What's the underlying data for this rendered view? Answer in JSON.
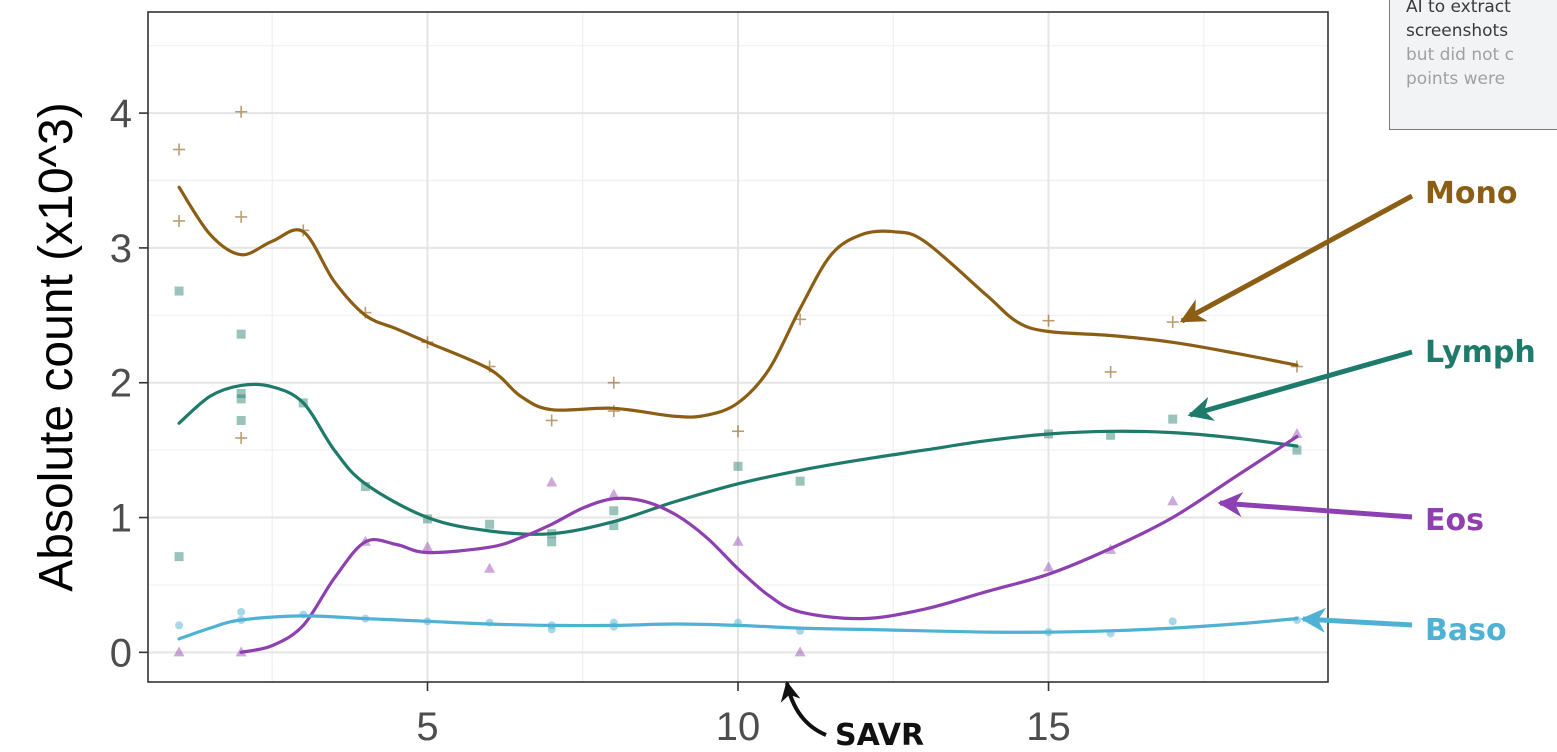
{
  "chart_data": {
    "type": "scatter",
    "ylabel": "Absolute count (x10^3)",
    "xlabel": "",
    "xlim": [
      0.5,
      19.5
    ],
    "ylim": [
      -0.22,
      4.75
    ],
    "x_ticks": [
      "5",
      "10",
      "15"
    ],
    "y_ticks": [
      "0",
      "1",
      "2",
      "3",
      "4"
    ],
    "grid": true,
    "series": [
      {
        "name": "Mono",
        "color": "#8b5e14",
        "marker": "plus",
        "points": [
          [
            1,
            3.73
          ],
          [
            1,
            3.2
          ],
          [
            2,
            4.01
          ],
          [
            2,
            3.23
          ],
          [
            2,
            1.59
          ],
          [
            3,
            3.13
          ],
          [
            4,
            2.52
          ],
          [
            5,
            2.3
          ],
          [
            6,
            2.12
          ],
          [
            7,
            1.72
          ],
          [
            8,
            2.0
          ],
          [
            8,
            1.79
          ],
          [
            10,
            1.64
          ],
          [
            11,
            2.47
          ],
          [
            15,
            2.46
          ],
          [
            16,
            2.08
          ],
          [
            17,
            2.45
          ],
          [
            19,
            2.12
          ]
        ],
        "smooth": [
          [
            1,
            3.45
          ],
          [
            1.5,
            3.1
          ],
          [
            2,
            2.95
          ],
          [
            2.5,
            3.05
          ],
          [
            3,
            3.12
          ],
          [
            3.5,
            2.75
          ],
          [
            4,
            2.5
          ],
          [
            4.5,
            2.4
          ],
          [
            5,
            2.3
          ],
          [
            6,
            2.1
          ],
          [
            6.5,
            1.9
          ],
          [
            7,
            1.8
          ],
          [
            8,
            1.81
          ],
          [
            9,
            1.75
          ],
          [
            9.5,
            1.76
          ],
          [
            10,
            1.85
          ],
          [
            10.5,
            2.1
          ],
          [
            11,
            2.55
          ],
          [
            11.5,
            2.95
          ],
          [
            12,
            3.1
          ],
          [
            12.5,
            3.12
          ],
          [
            13,
            3.05
          ],
          [
            14,
            2.65
          ],
          [
            14.5,
            2.45
          ],
          [
            15,
            2.38
          ],
          [
            16,
            2.35
          ],
          [
            17,
            2.3
          ],
          [
            18,
            2.22
          ],
          [
            19,
            2.13
          ]
        ]
      },
      {
        "name": "Lymph",
        "color": "#1e7a6a",
        "marker": "square",
        "points": [
          [
            1,
            2.68
          ],
          [
            1,
            0.71
          ],
          [
            2,
            2.36
          ],
          [
            2,
            1.92
          ],
          [
            2,
            1.88
          ],
          [
            2,
            1.72
          ],
          [
            3,
            1.85
          ],
          [
            4,
            1.23
          ],
          [
            5,
            0.99
          ],
          [
            6,
            0.95
          ],
          [
            7,
            0.88
          ],
          [
            7,
            0.82
          ],
          [
            8,
            1.05
          ],
          [
            8,
            0.94
          ],
          [
            10,
            1.38
          ],
          [
            11,
            1.27
          ],
          [
            15,
            1.62
          ],
          [
            16,
            1.61
          ],
          [
            17,
            1.73
          ],
          [
            19,
            1.5
          ]
        ],
        "smooth": [
          [
            1,
            1.7
          ],
          [
            1.5,
            1.9
          ],
          [
            2,
            1.98
          ],
          [
            2.5,
            1.97
          ],
          [
            3,
            1.85
          ],
          [
            3.5,
            1.5
          ],
          [
            4,
            1.25
          ],
          [
            5,
            1.0
          ],
          [
            6,
            0.9
          ],
          [
            7,
            0.88
          ],
          [
            8,
            0.97
          ],
          [
            9,
            1.12
          ],
          [
            10,
            1.25
          ],
          [
            11,
            1.35
          ],
          [
            12,
            1.43
          ],
          [
            13,
            1.5
          ],
          [
            14,
            1.57
          ],
          [
            15,
            1.62
          ],
          [
            16,
            1.64
          ],
          [
            17,
            1.63
          ],
          [
            18,
            1.59
          ],
          [
            19,
            1.53
          ]
        ]
      },
      {
        "name": "Eos",
        "color": "#8e3fb0",
        "marker": "triangle",
        "points": [
          [
            1,
            0.0
          ],
          [
            2,
            0.0
          ],
          [
            4,
            0.82
          ],
          [
            5,
            0.78
          ],
          [
            6,
            0.62
          ],
          [
            7,
            1.26
          ],
          [
            8,
            1.17
          ],
          [
            10,
            0.82
          ],
          [
            11,
            0.0
          ],
          [
            15,
            0.63
          ],
          [
            16,
            0.76
          ],
          [
            17,
            1.12
          ],
          [
            19,
            1.62
          ]
        ],
        "smooth": [
          [
            2,
            0.0
          ],
          [
            2.5,
            0.05
          ],
          [
            3,
            0.2
          ],
          [
            3.5,
            0.55
          ],
          [
            4,
            0.82
          ],
          [
            4.5,
            0.8
          ],
          [
            5,
            0.74
          ],
          [
            6,
            0.78
          ],
          [
            6.5,
            0.85
          ],
          [
            7,
            0.95
          ],
          [
            7.5,
            1.07
          ],
          [
            8,
            1.14
          ],
          [
            8.5,
            1.12
          ],
          [
            9,
            1.02
          ],
          [
            9.5,
            0.85
          ],
          [
            10,
            0.62
          ],
          [
            10.5,
            0.42
          ],
          [
            11,
            0.3
          ],
          [
            12,
            0.25
          ],
          [
            13,
            0.32
          ],
          [
            14,
            0.45
          ],
          [
            15,
            0.58
          ],
          [
            16,
            0.77
          ],
          [
            17,
            1.0
          ],
          [
            18,
            1.3
          ],
          [
            19,
            1.6
          ]
        ]
      },
      {
        "name": "Baso",
        "color": "#4fb1d4",
        "marker": "circle",
        "points": [
          [
            1,
            0.2
          ],
          [
            2,
            0.3
          ],
          [
            2,
            0.24
          ],
          [
            3,
            0.28
          ],
          [
            4,
            0.25
          ],
          [
            5,
            0.23
          ],
          [
            6,
            0.22
          ],
          [
            7,
            0.2
          ],
          [
            7,
            0.17
          ],
          [
            8,
            0.22
          ],
          [
            8,
            0.19
          ],
          [
            10,
            0.22
          ],
          [
            11,
            0.16
          ],
          [
            15,
            0.15
          ],
          [
            16,
            0.14
          ],
          [
            17,
            0.23
          ],
          [
            19,
            0.24
          ]
        ],
        "smooth": [
          [
            1,
            0.1
          ],
          [
            1.5,
            0.18
          ],
          [
            2,
            0.24
          ],
          [
            3,
            0.27
          ],
          [
            4,
            0.25
          ],
          [
            5,
            0.23
          ],
          [
            6,
            0.21
          ],
          [
            7,
            0.2
          ],
          [
            8,
            0.2
          ],
          [
            9,
            0.21
          ],
          [
            10,
            0.2
          ],
          [
            11,
            0.18
          ],
          [
            12,
            0.17
          ],
          [
            13,
            0.16
          ],
          [
            14,
            0.15
          ],
          [
            15,
            0.15
          ],
          [
            16,
            0.16
          ],
          [
            17,
            0.18
          ],
          [
            18,
            0.21
          ],
          [
            19,
            0.25
          ]
        ]
      }
    ],
    "annotations": [
      {
        "text": "SAVR",
        "x": 11,
        "color": "#111111"
      }
    ]
  },
  "labels": {
    "mono": "Mono",
    "lymph": "Lymph",
    "eos": "Eos",
    "baso": "Baso",
    "savr": "SAVR"
  },
  "note": {
    "line1": "AI to extract",
    "line2": "screenshots",
    "line3": "but did not c",
    "line4": "points were"
  }
}
